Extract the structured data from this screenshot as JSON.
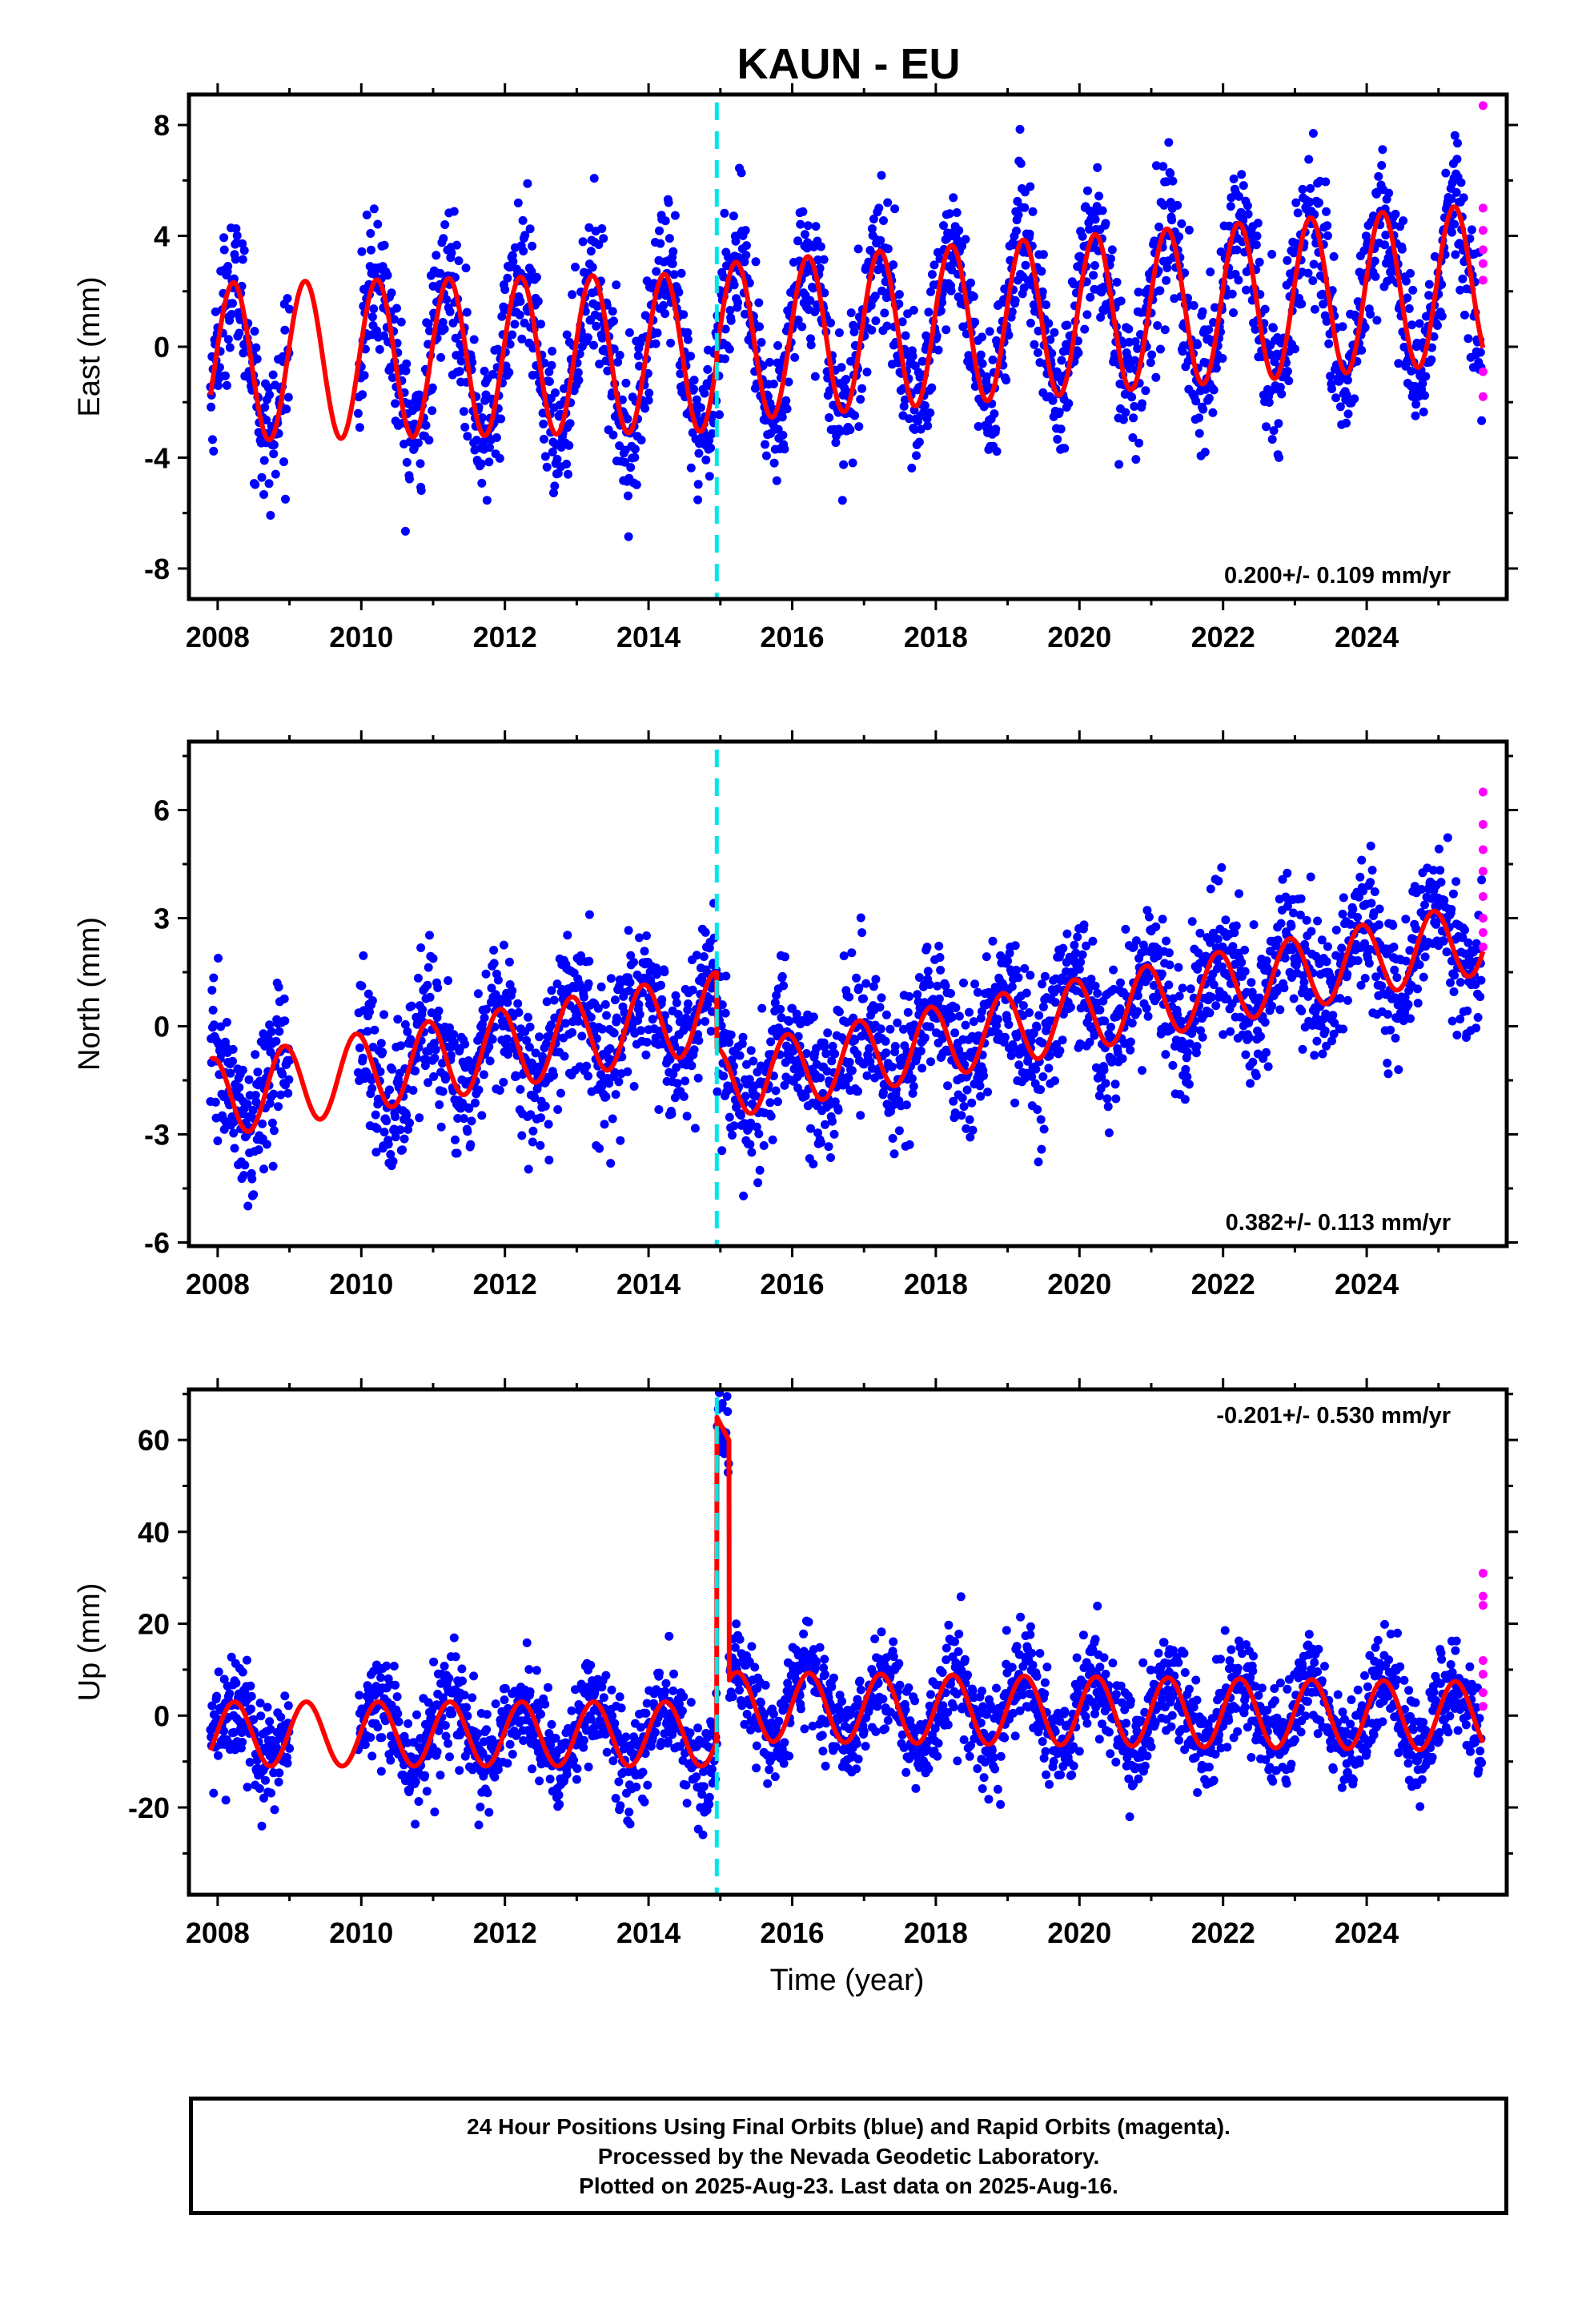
{
  "figure": {
    "title": "KAUN - EU",
    "xlabel": "Time (year)"
  },
  "footer": {
    "line1": "24 Hour Positions Using Final Orbits (blue) and Rapid Orbits (magenta).",
    "line2": "Processed by the Nevada Geodetic Laboratory.",
    "line3": "Plotted on 2025-Aug-23. Last data on 2025-Aug-16."
  },
  "colors": {
    "final_orbits": "#0000ff",
    "rapid_orbits": "#ff00ff",
    "model_fit": "#ff0000",
    "event_line": "#00e5e5"
  },
  "chart_data": [
    {
      "type": "scatter",
      "ylabel": "East (mm)",
      "rate_label": "0.200+/- 0.109 mm/yr",
      "rate_position": "bottom-right",
      "xlim": [
        2007.6,
        2025.95
      ],
      "ylim": [
        -9.1,
        9.1
      ],
      "xticks": [
        2008,
        2010,
        2012,
        2014,
        2016,
        2018,
        2020,
        2022,
        2024
      ],
      "yticks": [
        -8,
        -4,
        0,
        4,
        8
      ],
      "event_lines": [
        2014.95
      ],
      "data_range": [
        2007.9,
        2025.62
      ],
      "data_gap": [
        2009.0,
        2009.95
      ],
      "model": {
        "segments": [
          {
            "start": 2007.9,
            "end": 2014.95,
            "offset": -0.55,
            "slope": 0.05,
            "ref": 2007.9,
            "amp": 2.85,
            "phase": 0.2
          },
          {
            "start": 2014.95,
            "end": 2025.62,
            "offset": 0.15,
            "slope": 0.2,
            "ref": 2014.95,
            "amp": 2.85,
            "phase": 0.2
          }
        ]
      },
      "noise_sd": 1.3,
      "rapid_points": [
        [
          2025.62,
          8.7
        ],
        [
          2025.62,
          5.0
        ],
        [
          2025.62,
          4.2
        ],
        [
          2025.62,
          3.5
        ],
        [
          2025.62,
          3.0
        ],
        [
          2025.62,
          2.4
        ],
        [
          2025.62,
          -0.9
        ],
        [
          2025.62,
          -1.8
        ]
      ]
    },
    {
      "type": "scatter",
      "ylabel": "North (mm)",
      "rate_label": "0.382+/- 0.113 mm/yr",
      "rate_position": "bottom-right",
      "xlim": [
        2007.6,
        2025.95
      ],
      "ylim": [
        -6.1,
        7.9
      ],
      "xticks": [
        2008,
        2010,
        2012,
        2014,
        2016,
        2018,
        2020,
        2022,
        2024
      ],
      "yticks": [
        -6,
        -3,
        0,
        3,
        6
      ],
      "event_lines": [
        2014.95
      ],
      "data_range": [
        2007.9,
        2025.62
      ],
      "data_gap": [
        2009.0,
        2009.95
      ],
      "model": {
        "segments": [
          {
            "start": 2007.9,
            "end": 2014.95,
            "offset": -2.0,
            "slope": 0.34,
            "ref": 2007.9,
            "amp": 1.1,
            "phase": 2.0
          },
          {
            "start": 2014.95,
            "end": 2025.62,
            "offset": -1.6,
            "slope": 0.38,
            "ref": 2014.95,
            "amp": 1.0,
            "phase": 2.0
          }
        ]
      },
      "noise_sd": 1.0,
      "rapid_points": [
        [
          2025.62,
          6.5
        ],
        [
          2025.62,
          5.6
        ],
        [
          2025.62,
          4.9
        ],
        [
          2025.62,
          4.3
        ],
        [
          2025.62,
          3.6
        ],
        [
          2025.62,
          3.0
        ],
        [
          2025.62,
          2.6
        ],
        [
          2025.62,
          2.2
        ]
      ]
    },
    {
      "type": "scatter",
      "ylabel": "Up (mm)",
      "rate_label": "-0.201+/- 0.530 mm/yr",
      "rate_position": "top-right",
      "xlim": [
        2007.6,
        2025.95
      ],
      "ylim": [
        -39,
        71
      ],
      "xticks": [
        2008,
        2010,
        2012,
        2014,
        2016,
        2018,
        2020,
        2022,
        2024
      ],
      "yticks": [
        -20,
        0,
        20,
        40,
        60
      ],
      "event_lines": [
        2014.95
      ],
      "data_range": [
        2007.9,
        2025.62
      ],
      "data_gap": [
        2009.0,
        2009.95
      ],
      "model": {
        "segments": [
          {
            "start": 2007.9,
            "end": 2014.95,
            "offset": -4.0,
            "slope": 0.0,
            "ref": 2007.9,
            "amp": 7.0,
            "phase": 0.1
          },
          {
            "start": 2014.95,
            "end": 2025.62,
            "offset": 2.0,
            "slope": -0.2,
            "ref": 2014.95,
            "amp": 7.5,
            "phase": 0.1
          }
        ],
        "transient": {
          "start": 2014.95,
          "end": 2015.12,
          "peak": 65
        }
      },
      "noise_sd": 5.5,
      "rapid_points": [
        [
          2025.62,
          31
        ],
        [
          2025.62,
          26
        ],
        [
          2025.62,
          24
        ],
        [
          2025.62,
          12
        ],
        [
          2025.62,
          9
        ],
        [
          2025.62,
          5
        ],
        [
          2025.62,
          2
        ]
      ]
    }
  ]
}
